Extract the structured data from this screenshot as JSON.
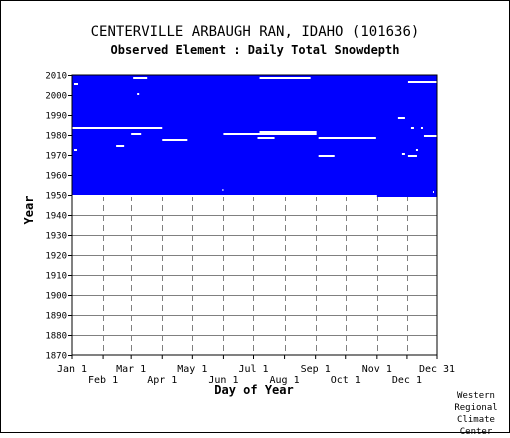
{
  "title": "CENTERVILLE ARBAUGH RAN, IDAHO   (101636)",
  "subtitle": "Observed Element : Daily Total Snowdepth",
  "credit": [
    "Western",
    "Regional",
    "Climate",
    "Center"
  ],
  "colors": {
    "data": "#0000ff",
    "background": "#ffffff",
    "grid": "#808080",
    "missing": "#ffffff"
  },
  "chart_data": {
    "type": "heatmap",
    "title": "CENTERVILLE ARBAUGH RAN, IDAHO   (101636)",
    "subtitle": "Observed Element : Daily Total Snowdepth",
    "xlabel": "Day of Year",
    "ylabel": "Year",
    "xlim": [
      1,
      365
    ],
    "ylim": [
      1870,
      2010
    ],
    "yticks": [
      1870,
      1880,
      1890,
      1900,
      1910,
      1920,
      1930,
      1940,
      1950,
      1960,
      1970,
      1980,
      1990,
      2000,
      2010
    ],
    "xticks_top": [
      {
        "label": "Jan 1",
        "day": 1
      },
      {
        "label": "Mar 1",
        "day": 60
      },
      {
        "label": "May 1",
        "day": 121
      },
      {
        "label": "Jul 1",
        "day": 182
      },
      {
        "label": "Sep 1",
        "day": 244
      },
      {
        "label": "Nov 1",
        "day": 305
      },
      {
        "label": "Dec 31",
        "day": 365
      }
    ],
    "xticks_bottom": [
      {
        "label": "Feb 1",
        "day": 32
      },
      {
        "label": "Apr 1",
        "day": 91
      },
      {
        "label": "Jun 1",
        "day": 152
      },
      {
        "label": "Aug 1",
        "day": 213
      },
      {
        "label": "Oct 1",
        "day": 274
      },
      {
        "label": "Dec 1",
        "day": 335
      }
    ],
    "gridlines_x": [
      32,
      60,
      91,
      121,
      152,
      182,
      213,
      244,
      274,
      305,
      335
    ],
    "grid": true,
    "record_blocks": [
      {
        "start_year": 1949,
        "end_year": 2010,
        "start_day": 1,
        "end_day": 365,
        "status": "observed"
      }
    ],
    "missing_gaps": [
      {
        "year": 2006,
        "start_day": 336,
        "end_day": 364
      },
      {
        "year": 2008,
        "start_day": 188,
        "end_day": 238
      },
      {
        "year": 2008,
        "start_day": 62,
        "end_day": 75
      },
      {
        "year": 2005,
        "start_day": 3,
        "end_day": 6
      },
      {
        "year": 2000,
        "start_day": 66,
        "end_day": 67
      },
      {
        "year": 1988,
        "start_day": 326,
        "end_day": 332
      },
      {
        "year": 1983,
        "start_day": 1,
        "end_day": 90
      },
      {
        "year": 1983,
        "start_day": 339,
        "end_day": 341
      },
      {
        "year": 1983,
        "start_day": 349,
        "end_day": 350
      },
      {
        "year": 1981,
        "start_day": 188,
        "end_day": 244
      },
      {
        "year": 1980,
        "start_day": 60,
        "end_day": 69
      },
      {
        "year": 1980,
        "start_day": 152,
        "end_day": 244
      },
      {
        "year": 1979,
        "start_day": 352,
        "end_day": 364
      },
      {
        "year": 1978,
        "start_day": 186,
        "end_day": 202
      },
      {
        "year": 1978,
        "start_day": 247,
        "end_day": 303
      },
      {
        "year": 1977,
        "start_day": 91,
        "end_day": 115
      },
      {
        "year": 1974,
        "start_day": 45,
        "end_day": 52
      },
      {
        "year": 1972,
        "start_day": 3,
        "end_day": 5
      },
      {
        "year": 1972,
        "start_day": 344,
        "end_day": 345
      },
      {
        "year": 1970,
        "start_day": 330,
        "end_day": 332
      },
      {
        "year": 1969,
        "start_day": 247,
        "end_day": 262
      },
      {
        "year": 1969,
        "start_day": 336,
        "end_day": 344
      },
      {
        "year": 1952,
        "start_day": 151,
        "end_day": 151
      },
      {
        "year": 1951,
        "start_day": 361,
        "end_day": 361
      },
      {
        "year": 1949,
        "start_day": 1,
        "end_day": 304
      }
    ]
  }
}
